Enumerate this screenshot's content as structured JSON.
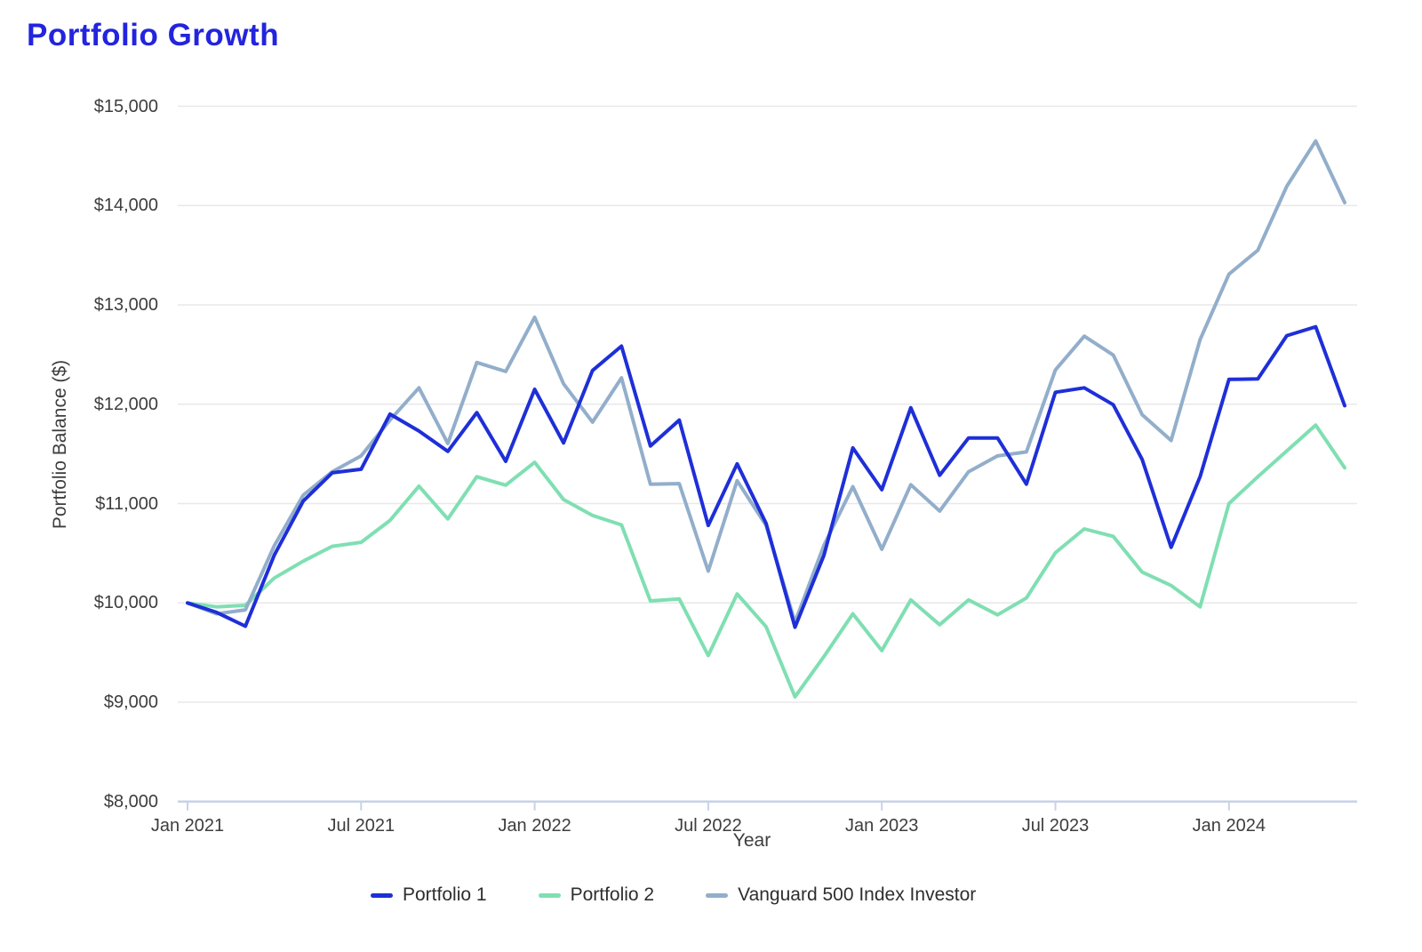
{
  "page_title": "Portfolio Growth",
  "accent_color": "#2324DE",
  "text_color": "#3d3d3d",
  "gridline_color": "#e8e8e8",
  "axis_line_color": "#c7d2ea",
  "chart_data": {
    "type": "line",
    "title": "Portfolio Growth",
    "xlabel": "Year",
    "ylabel": "Portfolio Balance ($)",
    "ylim": [
      8000,
      15000
    ],
    "ytick_step": 1000,
    "ytick_labels": [
      "$8,000",
      "$9,000",
      "$10,000",
      "$11,000",
      "$12,000",
      "$13,000",
      "$14,000",
      "$15,000"
    ],
    "grid": "horizontal-only",
    "legend_position": "bottom",
    "x_tick_labels": [
      "Jan 2021",
      "Jul 2021",
      "Jan 2022",
      "Jul 2022",
      "Jan 2023",
      "Jul 2023",
      "Jan 2024"
    ],
    "x_tick_indices": [
      0,
      6,
      12,
      18,
      24,
      30,
      36
    ],
    "categories": [
      "Jan 2021",
      "Feb 2021",
      "Mar 2021",
      "Apr 2021",
      "May 2021",
      "Jun 2021",
      "Jul 2021",
      "Aug 2021",
      "Sep 2021",
      "Oct 2021",
      "Nov 2021",
      "Dec 2021",
      "Jan 2022",
      "Feb 2022",
      "Mar 2022",
      "Apr 2022",
      "May 2022",
      "Jun 2022",
      "Jul 2022",
      "Aug 2022",
      "Sep 2022",
      "Oct 2022",
      "Nov 2022",
      "Dec 2022",
      "Jan 2023",
      "Feb 2023",
      "Mar 2023",
      "Apr 2023",
      "May 2023",
      "Jun 2023",
      "Jul 2023",
      "Aug 2023",
      "Sep 2023",
      "Oct 2023",
      "Nov 2023",
      "Dec 2023",
      "Jan 2024",
      "Feb 2024",
      "Mar 2024",
      "Apr 2024",
      "May 2024"
    ],
    "series": [
      {
        "name": "Portfolio 1",
        "color": "#1E2FD8",
        "values": [
          10000,
          9905,
          9765,
          10480,
          11025,
          11310,
          11345,
          11900,
          11730,
          11525,
          11915,
          11425,
          12150,
          11610,
          12340,
          12585,
          11580,
          11840,
          10780,
          11400,
          10800,
          9755,
          10480,
          11560,
          11140,
          11965,
          11285,
          11660,
          11660,
          11195,
          12120,
          12165,
          11995,
          11445,
          10560,
          11270,
          12250,
          12255,
          12690,
          12780,
          11985
        ]
      },
      {
        "name": "Portfolio 2",
        "color": "#7FDFB2",
        "values": [
          10000,
          9960,
          9975,
          10250,
          10420,
          10570,
          10610,
          10830,
          11175,
          10845,
          11270,
          11185,
          11415,
          11040,
          10880,
          10785,
          10020,
          10040,
          9470,
          10090,
          9760,
          9055,
          9460,
          9890,
          9520,
          10030,
          9780,
          10030,
          9880,
          10050,
          10505,
          10745,
          10670,
          10310,
          10175,
          9960,
          11000,
          11270,
          11530,
          11790,
          11360
        ]
      },
      {
        "name": "Vanguard 500 Index Investor",
        "color": "#92AECA",
        "values": [
          10000,
          9890,
          9930,
          10575,
          11085,
          11320,
          11480,
          11840,
          12165,
          11605,
          12420,
          12330,
          12875,
          12205,
          11820,
          12265,
          11195,
          11200,
          10320,
          11230,
          10780,
          9805,
          10580,
          11170,
          10540,
          11190,
          10925,
          11320,
          11480,
          11520,
          12345,
          12685,
          12495,
          11895,
          11635,
          12650,
          13310,
          13550,
          14195,
          14650,
          14030
        ]
      }
    ]
  }
}
